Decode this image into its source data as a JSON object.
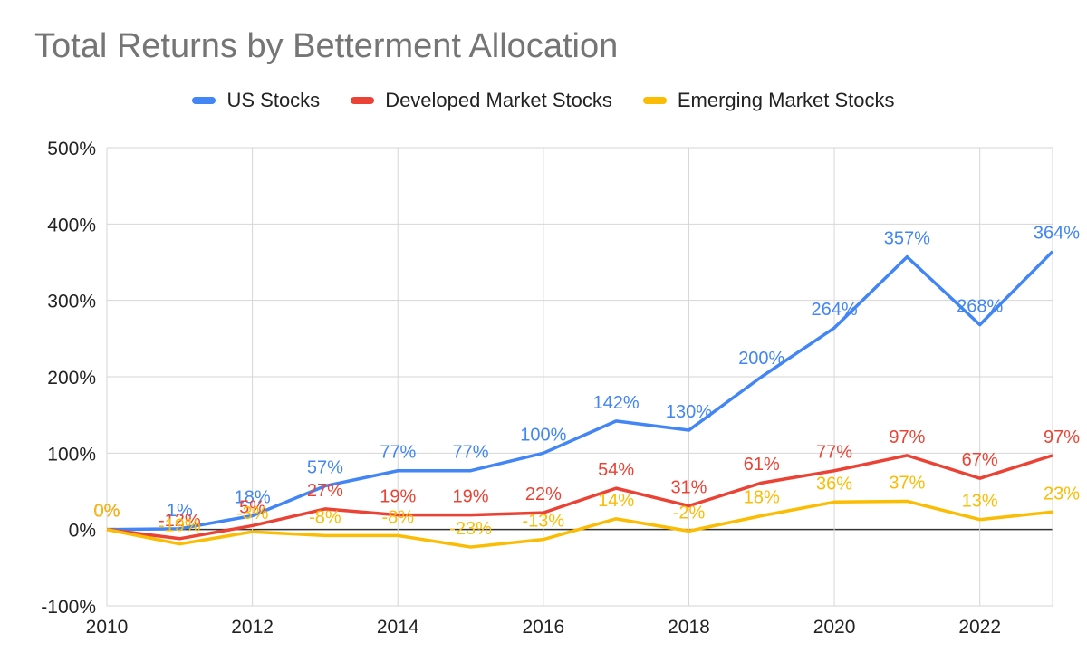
{
  "chart_data": {
    "type": "line",
    "title": "Total Returns by Betterment Allocation",
    "xlabel": "",
    "ylabel": "",
    "x": [
      2010,
      2011,
      2012,
      2013,
      2014,
      2015,
      2016,
      2017,
      2018,
      2019,
      2020,
      2021,
      2022,
      2023
    ],
    "x_ticks": [
      "2010",
      "2012",
      "2014",
      "2016",
      "2018",
      "2020",
      "2022"
    ],
    "y_ticks": [
      "500%",
      "400%",
      "300%",
      "200%",
      "100%",
      "0%",
      "-100%"
    ],
    "ylim": [
      -100,
      500
    ],
    "grid": true,
    "legend_position": "top",
    "series": [
      {
        "name": "US Stocks",
        "color": "#4285f4",
        "values": [
          0,
          1,
          18,
          57,
          77,
          77,
          100,
          142,
          130,
          200,
          264,
          357,
          268,
          364
        ],
        "labels": [
          "0%",
          "1%",
          "18%",
          "57%",
          "77%",
          "77%",
          "100%",
          "142%",
          "130%",
          "200%",
          "264%",
          "357%",
          "268%",
          "364%"
        ]
      },
      {
        "name": "Developed Market Stocks",
        "color": "#ea4335",
        "values": [
          0,
          -12,
          5,
          27,
          19,
          19,
          22,
          54,
          31,
          61,
          77,
          97,
          67,
          97
        ],
        "labels": [
          "0%",
          "-12%",
          "5%",
          "27%",
          "19%",
          "19%",
          "22%",
          "54%",
          "31%",
          "61%",
          "77%",
          "97%",
          "67%",
          "97%"
        ]
      },
      {
        "name": "Emerging Market Stocks",
        "color": "#fbbc04",
        "values": [
          0,
          -19,
          -3,
          -8,
          -8,
          -23,
          -13,
          14,
          -2,
          18,
          36,
          37,
          13,
          23
        ],
        "labels": [
          "0%",
          "-19%",
          "-3%",
          "-8%",
          "-8%",
          "-23%",
          "-13%",
          "14%",
          "-2%",
          "18%",
          "36%",
          "37%",
          "13%",
          "23%"
        ]
      }
    ]
  }
}
